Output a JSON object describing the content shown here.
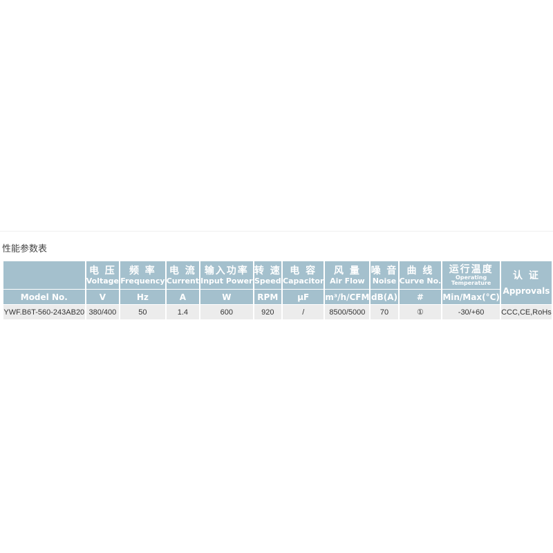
{
  "section_title": "性能参数表",
  "columns": [
    {
      "cn": "",
      "en": "",
      "unit": "Model No."
    },
    {
      "cn": "电 压",
      "en": "Voltage",
      "unit": "V"
    },
    {
      "cn": "频 率",
      "en": "Frequency",
      "unit": "Hz"
    },
    {
      "cn": "电 流",
      "en": "Current",
      "unit": "A"
    },
    {
      "cn": "输入功率",
      "en": "Input Power",
      "unit": "W"
    },
    {
      "cn": "转 速",
      "en": "Speed",
      "unit": "RPM"
    },
    {
      "cn": "电 容",
      "en": "Capacitor",
      "unit": "μF"
    },
    {
      "cn": "风 量",
      "en": "Air Flow",
      "unit": "m³/h/CFM"
    },
    {
      "cn": "噪 音",
      "en": "Noise",
      "unit": "dB(A)"
    },
    {
      "cn": "曲 线",
      "en": "Curve No.",
      "unit": "#"
    },
    {
      "cn": "运行温度",
      "en": "Operating Temperature",
      "unit": "Min/Max(°C)"
    },
    {
      "cn": "认 证",
      "en": "Approvals",
      "unit": ""
    }
  ],
  "rows": [
    [
      "YWF.B6T-560-243AB20",
      "380/400",
      "50",
      "1.4",
      "600",
      "920",
      "/",
      "8500/5000",
      "70",
      "①",
      "-30/+60",
      "CCC,CE,RoHs"
    ]
  ]
}
